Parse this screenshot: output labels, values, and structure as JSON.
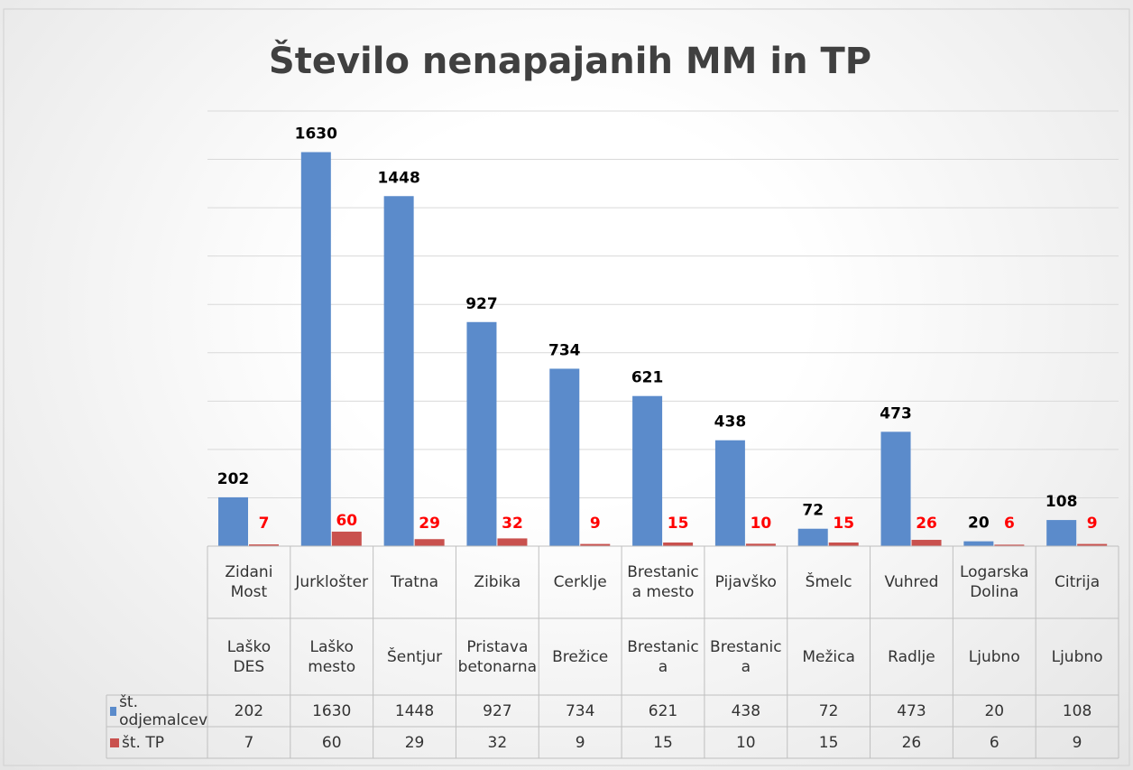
{
  "chart_data": {
    "type": "bar",
    "title": "Število nenapajanih MM in TP",
    "categories": [
      [
        "Zidani Most",
        "Laško DES"
      ],
      [
        "Jurklošter",
        "Laško mesto"
      ],
      [
        "Tratna",
        "Šentjur"
      ],
      [
        "Zibika",
        "Pristava betonarna"
      ],
      [
        "Cerklje",
        "Brežice"
      ],
      [
        "Brestanica mesto",
        "Brestanica"
      ],
      [
        "Pijavško",
        "Brestanica"
      ],
      [
        "Šmelc",
        "Mežica"
      ],
      [
        "Vuhred",
        "Radlje"
      ],
      [
        "Logarska Dolina",
        "Ljubno"
      ],
      [
        "Citrija",
        "Ljubno"
      ]
    ],
    "series": [
      {
        "name": "št. odjemalcev",
        "color": "#5b8bcb",
        "label_color": "#000000",
        "values": [
          202,
          1630,
          1448,
          927,
          734,
          621,
          438,
          72,
          473,
          20,
          108
        ]
      },
      {
        "name": "št. TP",
        "color": "#c9514e",
        "label_color": "#ff0000",
        "values": [
          7,
          60,
          29,
          32,
          9,
          15,
          10,
          15,
          26,
          6,
          9
        ]
      }
    ],
    "ylim": [
      0,
      1800
    ],
    "yticks": [
      0,
      200,
      400,
      600,
      800,
      1000,
      1200,
      1400,
      1600,
      1800
    ],
    "grid": true
  }
}
